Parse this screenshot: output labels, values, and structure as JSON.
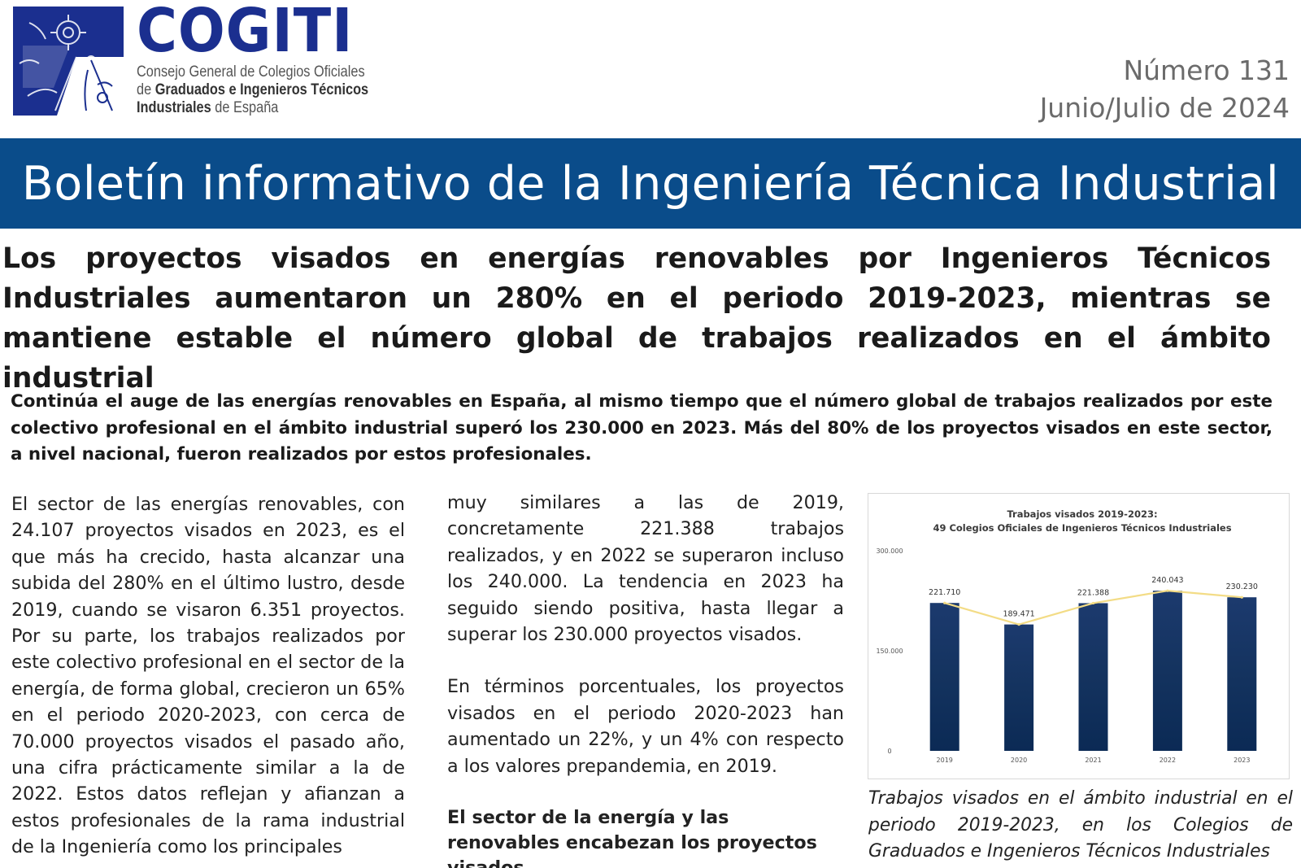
{
  "header": {
    "brand_name": "COGITI",
    "brand_sub_1": "Consejo General de Colegios Oficiales",
    "brand_sub_2_pre": "de ",
    "brand_sub_2_bold": "Graduados e Ingenieros Técnicos",
    "brand_sub_3_bold": "Industriales",
    "brand_sub_3_post": " de España",
    "issue_number": "Número 131",
    "issue_date": "Junio/Julio de 2024",
    "logo_icon": "compass-gear-emblem-icon"
  },
  "banner": {
    "title": "Boletín informativo de la Ingeniería Técnica Industrial"
  },
  "article": {
    "headline": "Los proyectos visados en energías renovables por Ingenieros Técnicos Industriales aumentaron un 280% en el periodo 2019-2023, mientras se mantiene estable el número global de trabajos realizados en el ámbito industrial",
    "lead": "Continúa el auge de las energías renovables en España, al mismo tiempo que el número global de trabajos realizados por este colectivo profesional en el ámbito industrial superó los 230.000 en 2023. Más del 80% de los proyectos visados en este sector,  a nivel nacional, fueron realizados por estos profesionales.",
    "col1_p1": "El sector de las energías renovables, con 24.107 proyectos visados en 2023, es el que más ha crecido, hasta alcanzar una subida del 280% en el último lustro, desde 2019, cuando se visaron 6.351 proyectos. Por su parte, los trabajos realizados por este colectivo profesional en el sector de la energía, de forma global, crecieron un 65% en el periodo 2020-2023, con cerca de 70.000 proyectos visados el pasado año, una cifra prácticamente similar a la de 2022. Estos datos reflejan y afianzan a estos profesionales de la rama industrial de la Ingeniería como los principales",
    "col2_p1": "muy similares a las de 2019, concretamente 221.388 trabajos realizados, y en 2022 se superaron incluso los 240.000. La tendencia en 2023 ha seguido siendo positiva, hasta llegar a superar los 230.000 proyectos visados.",
    "col2_p2": "En términos porcentuales, los proyectos visados en el periodo 2020-2023 han aumentado un 22%, y un 4% con respecto a los valores prepandemia, en 2019.",
    "col2_subhead": "El sector de la energía y las renovables encabezan los proyectos visados",
    "caption": "Trabajos visados en el ámbito industrial en el periodo 2019-2023, en los Colegios de Graduados e Ingenieros Técnicos Industriales"
  },
  "chart_data": {
    "type": "bar",
    "title": "Trabajos visados 2019-2023:",
    "subtitle": "49 Colegios Oficiales de Ingenieros Técnicos Industriales",
    "categories": [
      "2019",
      "2020",
      "2021",
      "2022",
      "2023"
    ],
    "values": [
      221710,
      189471,
      221388,
      240043,
      230230
    ],
    "value_labels": [
      "221.710",
      "189.471",
      "221.388",
      "240.043",
      "230.230"
    ],
    "overlay_line": true,
    "yticks": [
      0,
      150000,
      300000
    ],
    "ytick_labels": [
      "0",
      "150.000",
      "300.000"
    ],
    "ylim": [
      0,
      300000
    ],
    "xlabel": "",
    "ylabel": "",
    "grid": false,
    "colors": {
      "bar_top": "#1c3a6e",
      "bar_bottom": "#0b2a55",
      "line": "#f3dc86"
    }
  },
  "colors": {
    "brand_blue": "#1b2f8f",
    "banner": "#0a4c8a"
  }
}
